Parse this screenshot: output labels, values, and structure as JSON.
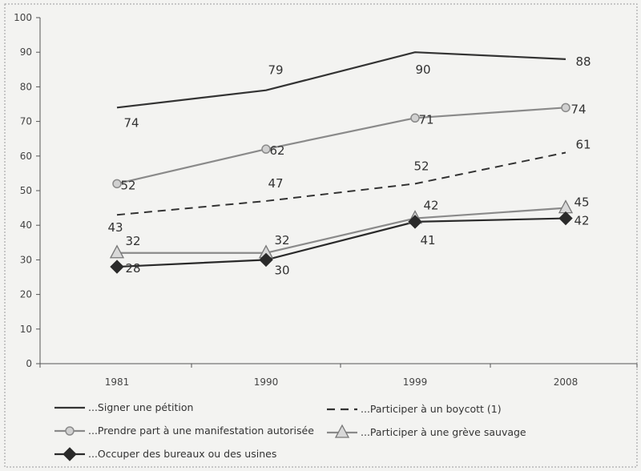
{
  "chart_data": {
    "type": "line",
    "title": "",
    "xlabel": "",
    "ylabel": "",
    "categories": [
      "1981",
      "1990",
      "1999",
      "2008"
    ],
    "ylim": [
      0,
      100
    ],
    "yticks": [
      0,
      10,
      20,
      30,
      40,
      50,
      60,
      70,
      80,
      90,
      100
    ],
    "grid": false,
    "legend_position": "bottom",
    "series": [
      {
        "name": "...Signer une pétition",
        "values": [
          74,
          79,
          90,
          88
        ],
        "color": "#333333",
        "style": "solid",
        "marker": "none"
      },
      {
        "name": "...Participer à un boycott (1)",
        "values": [
          43,
          47,
          52,
          61
        ],
        "color": "#333333",
        "style": "dashed",
        "marker": "none"
      },
      {
        "name": "...Prendre part à une manifestation autorisée",
        "values": [
          52,
          62,
          71,
          74
        ],
        "color": "#8a8a8a",
        "style": "solid",
        "marker": "circle"
      },
      {
        "name": "...Participer à une grève sauvage",
        "values": [
          32,
          32,
          42,
          45
        ],
        "color": "#8a8a8a",
        "style": "solid",
        "marker": "triangle"
      },
      {
        "name": "...Occuper des bureaux ou des usines",
        "values": [
          28,
          30,
          41,
          42
        ],
        "color": "#2a2a2a",
        "style": "solid",
        "marker": "diamond"
      }
    ]
  }
}
